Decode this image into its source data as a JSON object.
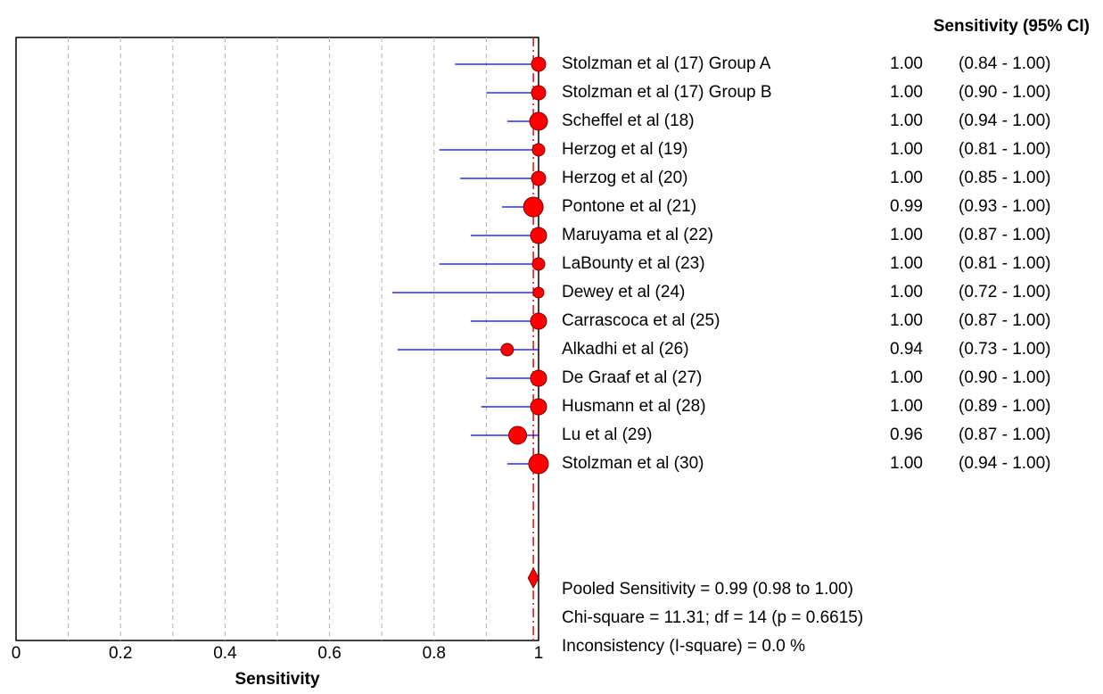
{
  "chart_data": {
    "type": "forest",
    "column_header": "Sensitivity (95% CI)",
    "x_label": "Sensitivity",
    "categories": [
      "Stolzman et al (17) Group A",
      "Stolzman et al (17) Group B",
      "Scheffel et al (18)",
      "Herzog et al (19)",
      "Herzog et al (20)",
      "Pontone et al (21)",
      "Maruyama et al (22)",
      "LaBounty et al (23)",
      "Dewey et al (24)",
      "Carrascoca et al (25)",
      "Alkadhi et al (26)",
      "De Graaf et al (27)",
      "Husmann et al (28)",
      "Lu et al (29)",
      "Stolzman et al (30)"
    ],
    "values": [
      1,
      1,
      1,
      1,
      1,
      0.99,
      1,
      1,
      1,
      1,
      0.94,
      1,
      1,
      0.96,
      1
    ],
    "value_labels": [
      "1.00",
      "1.00",
      "1.00",
      "1.00",
      "1.00",
      "0.99",
      "1.00",
      "1.00",
      "1.00",
      "1.00",
      "0.94",
      "1.00",
      "1.00",
      "0.96",
      "1.00"
    ],
    "ci_lower": [
      0.84,
      0.9,
      0.94,
      0.81,
      0.85,
      0.93,
      0.87,
      0.81,
      0.72,
      0.87,
      0.73,
      0.9,
      0.89,
      0.87,
      0.94
    ],
    "ci_upper": [
      1,
      1,
      1,
      1,
      1,
      1,
      1,
      1,
      1,
      1,
      1,
      1,
      1,
      1,
      1
    ],
    "ci_labels": [
      "(0.84 - 1.00)",
      "(0.90 - 1.00)",
      "(0.94 - 1.00)",
      "(0.81 - 1.00)",
      "(0.85 - 1.00)",
      "(0.93 - 1.00)",
      "(0.87 - 1.00)",
      "(0.81 - 1.00)",
      "(0.72 - 1.00)",
      "(0.87 - 1.00)",
      "(0.73 - 1.00)",
      "(0.90 - 1.00)",
      "(0.89 - 1.00)",
      "(0.87 - 1.00)",
      "(0.94 - 1.00)"
    ],
    "marker_sizes": [
      8,
      8,
      10,
      7,
      8,
      11,
      9,
      7,
      6,
      9,
      7,
      9,
      9,
      10,
      11
    ],
    "marker_color": "#ff0000",
    "ci_color": "#0000ff",
    "pooled": {
      "value": 0.99,
      "lower": 0.98,
      "upper": 1,
      "texts": [
        "Pooled Sensitivity = 0.99 (0.98 to 1.00)",
        "Chi-square = 11.31; df =  14 (p = 0.6615)",
        "Inconsistency (I-square) = 0.0 %"
      ]
    },
    "xlim": [
      0,
      1
    ],
    "xticks": [
      0,
      0.2,
      0.4,
      0.6,
      0.8,
      1
    ],
    "grid_xticks": [
      0.1,
      0.2,
      0.3,
      0.4,
      0.5,
      0.6,
      0.7,
      0.8,
      0.9
    ],
    "grid": true
  }
}
